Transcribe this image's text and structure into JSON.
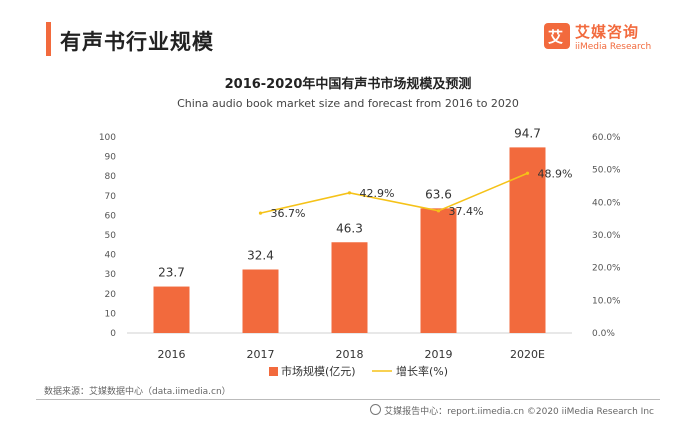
{
  "header": {
    "title": "有声书行业规模",
    "logo_cn": "艾媒咨询",
    "logo_en": "iiMedia Research",
    "logo_mark": "艾"
  },
  "chart_data": {
    "type": "bar",
    "title": "2016-2020年中国有声书市场规模及预测",
    "subtitle": "China audio book market size and forecast from 2016 to 2020",
    "categories": [
      "2016",
      "2017",
      "2018",
      "2019",
      "2020E"
    ],
    "series": [
      {
        "name": "市场规模(亿元)",
        "type": "bar",
        "axis": "left",
        "values": [
          23.7,
          32.4,
          46.3,
          63.6,
          94.7
        ],
        "labels": [
          "23.7",
          "32.4",
          "46.3",
          "63.6",
          "94.7"
        ]
      },
      {
        "name": "增长率(%)",
        "type": "line",
        "axis": "right",
        "values": [
          null,
          36.7,
          42.9,
          37.4,
          48.9
        ],
        "labels": [
          "",
          "36.7%",
          "42.9%",
          "37.4%",
          "48.9%"
        ]
      }
    ],
    "y_left": {
      "ylim": [
        0,
        100
      ],
      "ticks": [
        "0",
        "10",
        "20",
        "30",
        "40",
        "50",
        "60",
        "70",
        "80",
        "90",
        "100"
      ]
    },
    "y_right": {
      "ylim": [
        0,
        60
      ],
      "ticks": [
        "0.0%",
        "10.0%",
        "20.0%",
        "30.0%",
        "40.0%",
        "50.0%",
        "60.0%"
      ]
    },
    "legend_position": "bottom-center",
    "colors": {
      "bar": "#f26a3d",
      "line": "#f5c218"
    }
  },
  "footer": {
    "source": "数据来源：艾媒数据中心（data.iimedia.cn）",
    "report": "艾媒报告中心：report.iimedia.cn  ©2020 iiMedia Research Inc"
  }
}
